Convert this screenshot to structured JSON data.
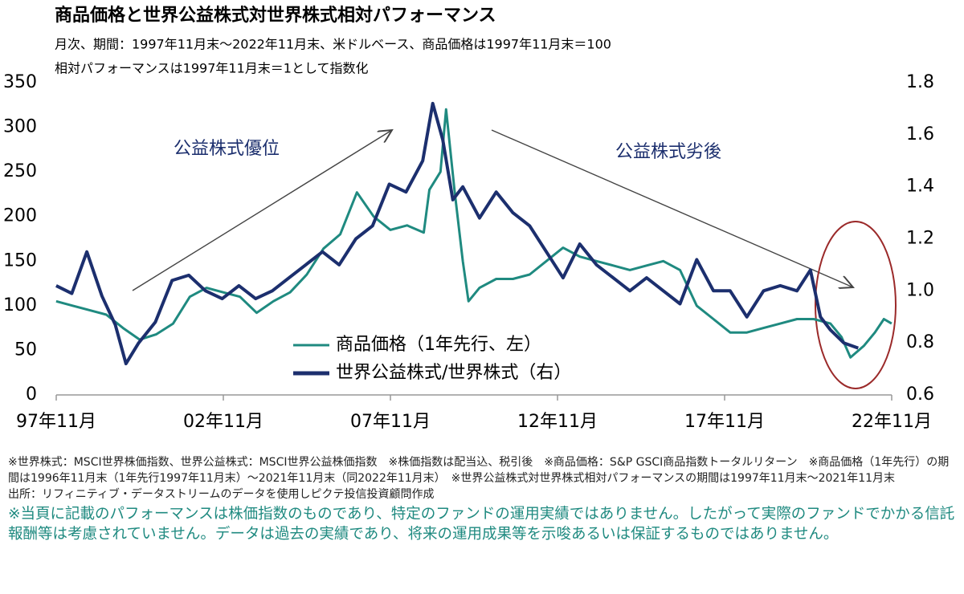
{
  "chart_data": {
    "type": "line",
    "title": "商品価格と世界公益株式対世界株式相対パフォーマンス",
    "subtitle": [
      "月次、期間：1997年11月末～2022年11月末、米ドルベース、商品価格は1997年11月末＝100",
      "相対パフォーマンスは1997年11月末＝1として指数化"
    ],
    "annotations": [
      "公益株式優位",
      "公益株式劣後"
    ],
    "xlim": [
      1997.833,
      2022.833
    ],
    "xticks": [
      {
        "value": 1997.833,
        "label": "97年11月"
      },
      {
        "value": 2002.833,
        "label": "02年11月"
      },
      {
        "value": 2007.833,
        "label": "07年11月"
      },
      {
        "value": 2012.833,
        "label": "12年11月"
      },
      {
        "value": 2017.833,
        "label": "17年11月"
      },
      {
        "value": 2022.833,
        "label": "22年11月"
      }
    ],
    "ylim": [
      0,
      350
    ],
    "yticks": [
      0,
      50,
      100,
      150,
      200,
      250,
      300,
      350
    ],
    "y2lim": [
      0.6,
      1.8
    ],
    "y2ticks": [
      0.6,
      0.8,
      {
        "value": 1,
        "label": "1.0"
      },
      1.2,
      1.4,
      1.6,
      1.8
    ],
    "series": [
      {
        "name": "商品価格（1年先行、左）",
        "color": "#1f8a80",
        "axis": "y",
        "x": [
          1997.83,
          1998.33,
          1998.83,
          1999.33,
          1999.83,
          2000.33,
          2000.83,
          2001.33,
          2001.83,
          2002.33,
          2002.83,
          2003.33,
          2003.83,
          2004.33,
          2004.83,
          2005.33,
          2005.83,
          2006.33,
          2006.83,
          2007.33,
          2007.83,
          2008.33,
          2008.83,
          2009.0,
          2009.33,
          2009.5,
          2009.75,
          2010.0,
          2010.17,
          2010.5,
          2011.0,
          2011.5,
          2012.0,
          2012.5,
          2013.0,
          2013.5,
          2014.0,
          2014.5,
          2015.0,
          2015.5,
          2016.0,
          2016.5,
          2017.0,
          2017.5,
          2018.0,
          2018.5,
          2019.0,
          2019.5,
          2020.0,
          2020.5,
          2021.0,
          2021.33,
          2021.6,
          2022.0,
          2022.33,
          2022.6,
          2022.83
        ],
        "values": [
          105,
          100,
          95,
          90,
          75,
          62,
          68,
          80,
          110,
          120,
          115,
          110,
          92,
          105,
          115,
          135,
          164,
          180,
          227,
          200,
          185,
          190,
          182,
          230,
          250,
          320,
          230,
          150,
          105,
          120,
          130,
          130,
          135,
          150,
          165,
          155,
          150,
          145,
          140,
          145,
          150,
          140,
          100,
          85,
          70,
          70,
          75,
          80,
          85,
          85,
          80,
          65,
          42,
          55,
          70,
          85,
          80
        ]
      },
      {
        "name": "世界公益株式/世界株式（右）",
        "color": "#1c2f6e",
        "axis": "y2",
        "x": [
          1997.83,
          1998.3,
          1998.75,
          1999.2,
          1999.6,
          1999.92,
          2000.3,
          2000.8,
          2001.3,
          2001.8,
          2002.3,
          2002.8,
          2003.3,
          2003.8,
          2004.3,
          2004.8,
          2005.3,
          2005.8,
          2006.3,
          2006.8,
          2007.3,
          2007.8,
          2008.3,
          2008.8,
          2009.1,
          2009.4,
          2009.7,
          2010.0,
          2010.5,
          2011.0,
          2011.5,
          2012.0,
          2012.5,
          2013.0,
          2013.5,
          2014.0,
          2014.5,
          2015.0,
          2015.5,
          2016.0,
          2016.5,
          2017.0,
          2017.5,
          2018.0,
          2018.5,
          2019.0,
          2019.5,
          2020.0,
          2020.4,
          2020.7,
          2021.0,
          2021.4,
          2021.83
        ],
        "values": [
          1.02,
          0.99,
          1.15,
          0.98,
          0.87,
          0.72,
          0.8,
          0.88,
          1.04,
          1.06,
          1.0,
          0.97,
          1.02,
          0.97,
          1.0,
          1.05,
          1.1,
          1.15,
          1.1,
          1.2,
          1.25,
          1.41,
          1.38,
          1.5,
          1.72,
          1.58,
          1.35,
          1.4,
          1.28,
          1.38,
          1.3,
          1.25,
          1.15,
          1.05,
          1.18,
          1.1,
          1.05,
          1.0,
          1.05,
          1.0,
          0.95,
          1.12,
          1.0,
          1.0,
          0.9,
          1.0,
          1.02,
          1.0,
          1.08,
          0.9,
          0.85,
          0.8,
          0.78
        ]
      }
    ],
    "footnotes": [
      "※世界株式：MSCI世界株価指数、世界公益株式：MSCI世界公益株価指数　※株価指数は配当込、税引後　※商品価格：S&P GSCI商品指数トータルリターン　※商品価格（1年先行）の期間は1996年11月末（1年先行1997年11月末）～2021年11月末（同2022年11月末）　※世界公益株式対世界株式相対パフォーマンスの期間は1997年11月末～2021年11月末",
      "出所：リフィニティブ・データストリームのデータを使用しピクテ投信投資顧問作成"
    ],
    "disclaimer": "※当頁に記載のパフォーマンスは株価指数のものであり、特定のファンドの運用実績ではありません。したがって実際のファンドでかかる信託報酬等は考慮されていません。データは過去の実績であり、将来の運用成果等を示唆あるいは保証するものではありません。"
  }
}
